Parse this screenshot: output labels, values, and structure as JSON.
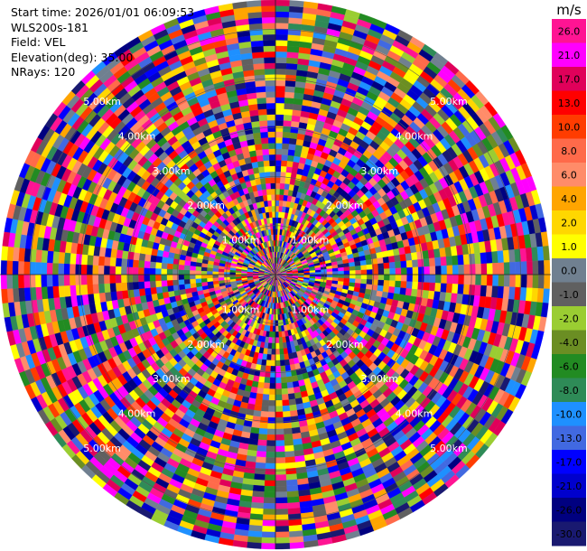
{
  "info": {
    "start_time": "Start time: 2026/01/01 06:09:53",
    "instrument": "WLS200s-181",
    "field": "Field: VEL",
    "elevation": "Elevation(deg): 35.00",
    "nrays": "NRays: 120"
  },
  "chart_data": {
    "type": "polar_ppi",
    "field": "VEL",
    "units": "m/s",
    "nrays": 120,
    "elevation_deg": 35.0,
    "range_rings_km": [
      1,
      2,
      3,
      4,
      5
    ],
    "ring_labels": [
      "1.00km",
      "2.00km",
      "3.00km",
      "4.00km",
      "5.00km"
    ],
    "colorbar": {
      "unit_label": "m/s",
      "ticks": [
        "26.0",
        "21.0",
        "17.0",
        "13.0",
        "10.0",
        "8.0",
        "6.0",
        "4.0",
        "2.0",
        "1.0",
        "0.0",
        "-1.0",
        "-2.0",
        "-4.0",
        "-6.0",
        "-8.0",
        "-10.0",
        "-13.0",
        "-17.0",
        "-21.0",
        "-26.0",
        "-30.0"
      ],
      "colors": [
        "#ff1493",
        "#ff00ff",
        "#e0005a",
        "#ff0000",
        "#ff3c00",
        "#ff6a4a",
        "#ff8c69",
        "#ffa500",
        "#ffd700",
        "#ffff00",
        "#708090",
        "#606060",
        "#9acd32",
        "#6b8e23",
        "#228b22",
        "#2e8b57",
        "#1e90ff",
        "#4169e1",
        "#0000ff",
        "#0000cd",
        "#000080",
        "#191970"
      ]
    }
  }
}
